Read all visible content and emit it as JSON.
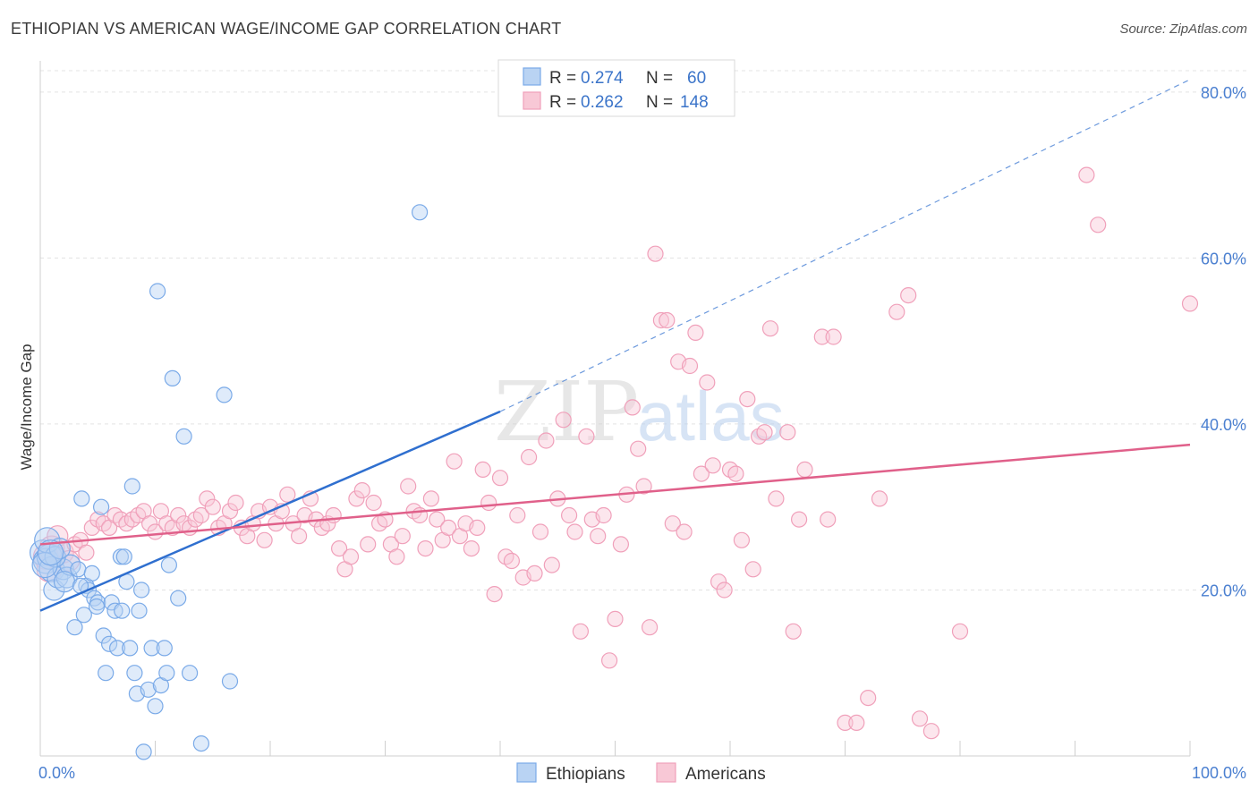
{
  "title": "ETHIOPIAN VS AMERICAN WAGE/INCOME GAP CORRELATION CHART",
  "source": "Source: ZipAtlas.com",
  "watermark": {
    "zip": "ZIP",
    "atlas": "atlas"
  },
  "chart_data": {
    "type": "scatter",
    "title": "ETHIOPIAN VS AMERICAN WAGE/INCOME GAP CORRELATION CHART",
    "xlabel": "",
    "ylabel": "Wage/Income Gap",
    "xlim": [
      0,
      100
    ],
    "ylim": [
      0,
      83
    ],
    "x_tick_labels": [
      {
        "value": 0,
        "label": "0.0%"
      },
      {
        "value": 100,
        "label": "100.0%"
      }
    ],
    "y_tick_labels": [
      {
        "value": 20,
        "label": "20.0%"
      },
      {
        "value": 40,
        "label": "40.0%"
      },
      {
        "value": 60,
        "label": "60.0%"
      },
      {
        "value": 80,
        "label": "80.0%"
      }
    ],
    "grid": true,
    "legend_placement": "top-center",
    "stats": [
      {
        "r_label": "R =",
        "r": "0.274",
        "n_label": "N =",
        "n": "60"
      },
      {
        "r_label": "R =",
        "r": "0.262",
        "n_label": "N =",
        "n": "148"
      }
    ],
    "series": [
      {
        "name": "Ethiopians",
        "color": "#7aaae8",
        "fill": "#b9d3f3",
        "line_color": "#2f6fcf",
        "trend": {
          "x0": 0,
          "y0": 17.5,
          "x1": 40,
          "y1": 41.5,
          "dash_to_x": 100,
          "dash_to_y": 81.5
        },
        "points": [
          [
            0.2,
            24.5
          ],
          [
            0.5,
            23.5
          ],
          [
            0.8,
            24.0
          ],
          [
            1.0,
            22.5
          ],
          [
            1.2,
            20.0
          ],
          [
            1.5,
            21.5
          ],
          [
            2.0,
            22.5
          ],
          [
            2.3,
            21.5
          ],
          [
            2.6,
            23.0
          ],
          [
            3.0,
            15.5
          ],
          [
            3.3,
            22.5
          ],
          [
            3.6,
            31.0
          ],
          [
            3.8,
            17.0
          ],
          [
            4.0,
            20.5
          ],
          [
            4.2,
            20.0
          ],
          [
            4.5,
            22.0
          ],
          [
            4.7,
            19.0
          ],
          [
            5.0,
            18.5
          ],
          [
            5.3,
            30.0
          ],
          [
            5.5,
            14.5
          ],
          [
            5.7,
            10.0
          ],
          [
            6.0,
            13.5
          ],
          [
            6.2,
            18.5
          ],
          [
            6.5,
            17.5
          ],
          [
            6.7,
            13.0
          ],
          [
            7.0,
            24.0
          ],
          [
            7.3,
            24.0
          ],
          [
            7.5,
            21.0
          ],
          [
            7.8,
            13.0
          ],
          [
            8.0,
            32.5
          ],
          [
            8.2,
            10.0
          ],
          [
            8.4,
            7.5
          ],
          [
            8.6,
            17.5
          ],
          [
            8.8,
            20.0
          ],
          [
            9.0,
            0.5
          ],
          [
            9.4,
            8.0
          ],
          [
            9.7,
            13.0
          ],
          [
            10.0,
            6.0
          ],
          [
            10.2,
            56.0
          ],
          [
            10.5,
            8.5
          ],
          [
            10.8,
            13.0
          ],
          [
            11.0,
            10.0
          ],
          [
            11.2,
            23.0
          ],
          [
            11.5,
            45.5
          ],
          [
            12.0,
            19.0
          ],
          [
            12.5,
            38.5
          ],
          [
            13.0,
            10.0
          ],
          [
            14.0,
            1.5
          ],
          [
            16.0,
            43.5
          ],
          [
            16.5,
            9.0
          ],
          [
            33.0,
            65.5
          ],
          [
            0.6,
            26.0
          ],
          [
            1.3,
            24.0
          ],
          [
            2.1,
            21.0
          ],
          [
            0.4,
            23.0
          ],
          [
            1.7,
            25.0
          ],
          [
            3.5,
            20.5
          ],
          [
            4.9,
            18.0
          ],
          [
            7.1,
            17.5
          ],
          [
            0.9,
            24.5
          ]
        ]
      },
      {
        "name": "Americans",
        "color": "#f0a0ba",
        "fill": "#f8c8d6",
        "line_color": "#e0608a",
        "trend": {
          "x0": 0,
          "y0": 25.5,
          "x1": 100,
          "y1": 37.5
        },
        "points": [
          [
            0.5,
            24.0
          ],
          [
            0.8,
            22.5
          ],
          [
            1.0,
            25.0
          ],
          [
            1.5,
            26.5
          ],
          [
            2.0,
            24.5
          ],
          [
            2.5,
            23.5
          ],
          [
            3.0,
            25.5
          ],
          [
            3.5,
            26.0
          ],
          [
            4.0,
            24.5
          ],
          [
            4.5,
            27.5
          ],
          [
            5.0,
            28.5
          ],
          [
            5.5,
            28.0
          ],
          [
            6.0,
            27.5
          ],
          [
            6.5,
            29.0
          ],
          [
            7.0,
            28.5
          ],
          [
            7.5,
            28.0
          ],
          [
            8.0,
            28.5
          ],
          [
            8.5,
            29.0
          ],
          [
            9.0,
            29.5
          ],
          [
            9.5,
            28.0
          ],
          [
            10.0,
            27.0
          ],
          [
            10.5,
            29.5
          ],
          [
            11.0,
            28.0
          ],
          [
            11.5,
            27.5
          ],
          [
            12.0,
            29.0
          ],
          [
            12.5,
            28.0
          ],
          [
            13.0,
            27.5
          ],
          [
            13.5,
            28.5
          ],
          [
            14.0,
            29.0
          ],
          [
            14.5,
            31.0
          ],
          [
            15.0,
            30.0
          ],
          [
            15.5,
            27.5
          ],
          [
            16.0,
            28.0
          ],
          [
            16.5,
            29.5
          ],
          [
            17.0,
            30.5
          ],
          [
            17.5,
            27.5
          ],
          [
            18.0,
            26.5
          ],
          [
            18.5,
            28.0
          ],
          [
            19.0,
            29.5
          ],
          [
            19.5,
            26.0
          ],
          [
            20.0,
            30.0
          ],
          [
            20.5,
            28.0
          ],
          [
            21.0,
            29.5
          ],
          [
            21.5,
            31.5
          ],
          [
            22.0,
            28.0
          ],
          [
            22.5,
            26.5
          ],
          [
            23.0,
            29.0
          ],
          [
            23.5,
            31.0
          ],
          [
            24.0,
            28.5
          ],
          [
            24.5,
            27.5
          ],
          [
            25.0,
            28.0
          ],
          [
            25.5,
            29.0
          ],
          [
            26.0,
            25.0
          ],
          [
            26.5,
            22.5
          ],
          [
            27.0,
            24.0
          ],
          [
            27.5,
            31.0
          ],
          [
            28.0,
            32.0
          ],
          [
            28.5,
            25.5
          ],
          [
            29.0,
            30.5
          ],
          [
            29.5,
            28.0
          ],
          [
            30.0,
            28.5
          ],
          [
            30.5,
            25.5
          ],
          [
            31.0,
            24.0
          ],
          [
            31.5,
            26.5
          ],
          [
            32.0,
            32.5
          ],
          [
            32.5,
            29.5
          ],
          [
            33.0,
            29.0
          ],
          [
            33.5,
            25.0
          ],
          [
            34.0,
            31.0
          ],
          [
            34.5,
            28.5
          ],
          [
            35.0,
            26.0
          ],
          [
            35.5,
            27.5
          ],
          [
            36.0,
            35.5
          ],
          [
            36.5,
            26.5
          ],
          [
            37.0,
            28.0
          ],
          [
            37.5,
            25.0
          ],
          [
            38.0,
            27.5
          ],
          [
            38.5,
            34.5
          ],
          [
            39.0,
            30.5
          ],
          [
            39.5,
            19.5
          ],
          [
            40.0,
            33.5
          ],
          [
            40.5,
            24.0
          ],
          [
            41.0,
            23.5
          ],
          [
            41.5,
            29.0
          ],
          [
            42.0,
            21.5
          ],
          [
            42.5,
            36.0
          ],
          [
            43.0,
            22.0
          ],
          [
            43.5,
            27.0
          ],
          [
            44.0,
            38.0
          ],
          [
            44.5,
            23.0
          ],
          [
            45.0,
            31.0
          ],
          [
            45.5,
            40.5
          ],
          [
            46.0,
            29.0
          ],
          [
            46.5,
            27.0
          ],
          [
            47.0,
            15.0
          ],
          [
            47.5,
            38.5
          ],
          [
            48.0,
            28.5
          ],
          [
            48.5,
            26.5
          ],
          [
            49.0,
            29.0
          ],
          [
            49.5,
            11.5
          ],
          [
            50.0,
            16.5
          ],
          [
            50.5,
            25.5
          ],
          [
            51.0,
            31.5
          ],
          [
            51.5,
            42.0
          ],
          [
            52.0,
            37.0
          ],
          [
            52.5,
            32.5
          ],
          [
            53.0,
            15.5
          ],
          [
            53.5,
            60.5
          ],
          [
            54.0,
            52.5
          ],
          [
            55.0,
            28.0
          ],
          [
            55.5,
            47.5
          ],
          [
            56.0,
            27.0
          ],
          [
            56.5,
            47.0
          ],
          [
            57.0,
            51.0
          ],
          [
            57.5,
            34.0
          ],
          [
            58.0,
            45.0
          ],
          [
            58.5,
            35.0
          ],
          [
            59.0,
            21.0
          ],
          [
            59.5,
            20.0
          ],
          [
            60.0,
            34.5
          ],
          [
            60.5,
            34.0
          ],
          [
            61.0,
            26.0
          ],
          [
            61.5,
            43.0
          ],
          [
            62.0,
            22.5
          ],
          [
            62.5,
            38.5
          ],
          [
            63.0,
            39.0
          ],
          [
            63.5,
            51.5
          ],
          [
            64.0,
            31.0
          ],
          [
            65.0,
            39.0
          ],
          [
            65.5,
            15.0
          ],
          [
            66.0,
            28.5
          ],
          [
            66.5,
            34.5
          ],
          [
            68.0,
            50.5
          ],
          [
            68.5,
            28.5
          ],
          [
            69.0,
            50.5
          ],
          [
            70.0,
            4.0
          ],
          [
            71.0,
            4.0
          ],
          [
            72.0,
            7.0
          ],
          [
            73.0,
            31.0
          ],
          [
            74.5,
            53.5
          ],
          [
            75.5,
            55.5
          ],
          [
            76.5,
            4.5
          ],
          [
            77.5,
            3.0
          ],
          [
            80.0,
            15.0
          ],
          [
            91.0,
            70.0
          ],
          [
            92.0,
            64.0
          ],
          [
            100.0,
            54.5
          ],
          [
            54.5,
            52.5
          ]
        ]
      }
    ]
  },
  "legend": {
    "ethiopians_label": "Ethiopians",
    "americans_label": "Americans"
  }
}
